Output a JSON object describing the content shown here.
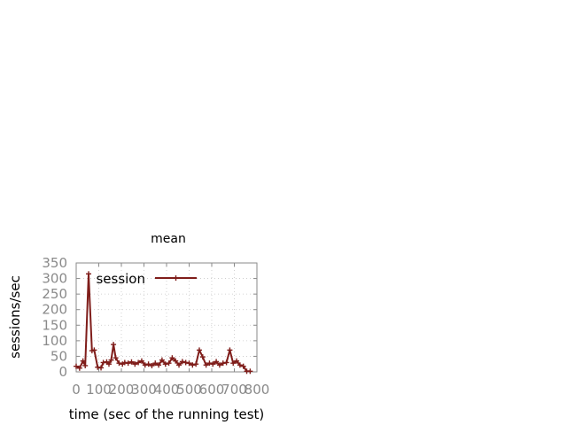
{
  "chart_data": {
    "type": "line",
    "title": "mean",
    "xlabel": "time (sec of the running test)",
    "ylabel": "sessions/sec",
    "xlim": [
      0,
      800
    ],
    "ylim": [
      0,
      350
    ],
    "xticks": [
      "0",
      "100",
      "200",
      "300",
      "400",
      "500",
      "600",
      "700",
      "800"
    ],
    "yticks": [
      "0",
      "50",
      "100",
      "150",
      "200",
      "250",
      "300",
      "350"
    ],
    "grid": true,
    "legend_position": "top-left",
    "series": [
      {
        "name": "session",
        "color": "#7f1d1a",
        "marker": "plus",
        "x": [
          0,
          15,
          30,
          40,
          55,
          70,
          80,
          95,
          110,
          120,
          135,
          145,
          155,
          165,
          175,
          190,
          205,
          215,
          230,
          245,
          260,
          275,
          290,
          305,
          320,
          335,
          350,
          365,
          380,
          395,
          410,
          425,
          440,
          455,
          470,
          485,
          500,
          515,
          530,
          545,
          560,
          575,
          590,
          605,
          620,
          635,
          650,
          665,
          680,
          695,
          710,
          725,
          740,
          755,
          770
        ],
        "y": [
          18,
          12,
          35,
          20,
          315,
          68,
          70,
          15,
          13,
          30,
          32,
          25,
          38,
          88,
          45,
          28,
          25,
          30,
          28,
          32,
          25,
          30,
          35,
          22,
          25,
          20,
          28,
          22,
          38,
          25,
          28,
          45,
          35,
          22,
          33,
          30,
          28,
          22,
          25,
          70,
          48,
          22,
          28,
          25,
          33,
          22,
          28,
          30,
          70,
          28,
          35,
          22,
          18,
          2,
          2
        ]
      }
    ]
  }
}
